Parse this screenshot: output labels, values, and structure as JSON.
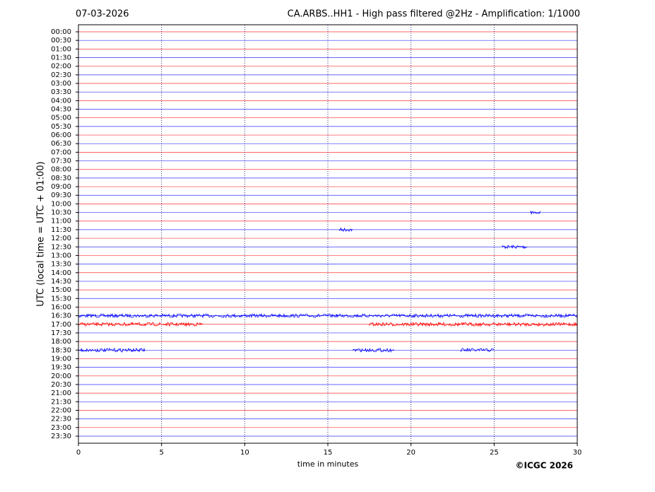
{
  "chart_data": {
    "type": "helicorder",
    "date": "07-03-2026",
    "title": "CA.ARBS..HH1 - High pass filtered @2Hz - Amplification: 1/1000",
    "ylabel": "UTC (local time = UTC + 01:00)",
    "xlabel": "time in minutes",
    "copyright": "©ICGC 2026",
    "categories": [
      "00:00",
      "00:30",
      "01:00",
      "01:30",
      "02:00",
      "02:30",
      "03:00",
      "03:30",
      "04:00",
      "04:30",
      "05:00",
      "05:30",
      "06:00",
      "06:30",
      "07:00",
      "07:30",
      "08:00",
      "08:30",
      "09:00",
      "09:30",
      "10:00",
      "10:30",
      "11:00",
      "11:30",
      "12:00",
      "12:30",
      "13:00",
      "13:30",
      "14:00",
      "14:30",
      "15:00",
      "15:30",
      "16:00",
      "16:30",
      "17:00",
      "17:30",
      "18:00",
      "18:30",
      "19:00",
      "19:30",
      "20:00",
      "20:30",
      "21:00",
      "21:30",
      "22:00",
      "22:30",
      "23:00",
      "23:30"
    ],
    "colors": [
      "#ff0000",
      "#0000ff"
    ],
    "xlim": [
      0,
      30
    ],
    "xticks": [
      0,
      5,
      10,
      15,
      20,
      25,
      30
    ],
    "grid": true,
    "events": [
      {
        "row": "10:30",
        "start": 27.2,
        "end": 27.8
      },
      {
        "row": "11:30",
        "start": 15.7,
        "end": 16.5
      },
      {
        "row": "12:30",
        "start": 25.5,
        "end": 27
      },
      {
        "row": "16:30",
        "start": 0,
        "end": 30
      },
      {
        "row": "17:00",
        "start": 0,
        "end": 7.5
      },
      {
        "row": "17:00",
        "start": 17.5,
        "end": 30
      },
      {
        "row": "18:30",
        "start": 0,
        "end": 4
      },
      {
        "row": "18:30",
        "start": 16.5,
        "end": 19
      },
      {
        "row": "18:30",
        "start": 23,
        "end": 25
      }
    ]
  }
}
